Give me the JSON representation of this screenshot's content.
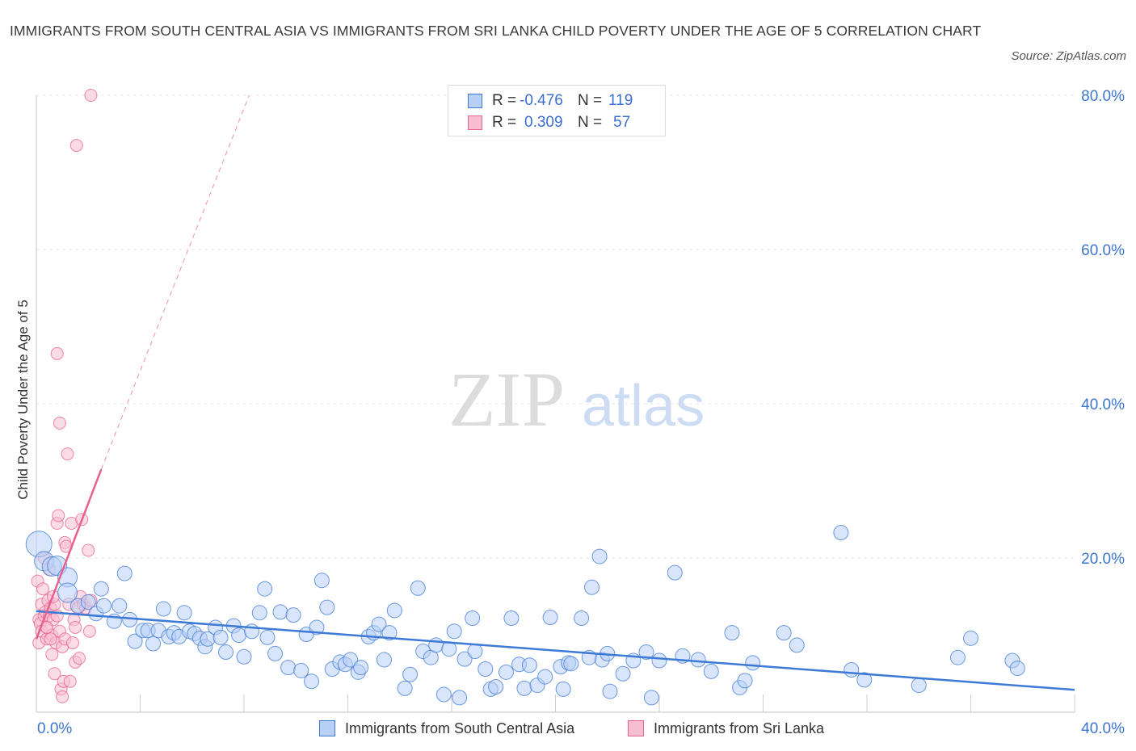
{
  "title": "IMMIGRANTS FROM SOUTH CENTRAL ASIA VS IMMIGRANTS FROM SRI LANKA CHILD POVERTY UNDER THE AGE OF 5 CORRELATION CHART",
  "source": "Source: ZipAtlas.com",
  "watermark": {
    "zip": "ZIP",
    "atlas": "atlas"
  },
  "colors": {
    "blue": "#3d7ad6",
    "blue_fill": "#b8d0f5",
    "pink": "#e8608f",
    "pink_fill": "#f7bdd0",
    "grid": "#e5e5e5",
    "tick_label": "#3d75cc"
  },
  "legend_top": [
    {
      "r_label": "R =",
      "r_value": "-0.476",
      "n_label": "N =",
      "n_value": "119"
    },
    {
      "r_label": "R =",
      "r_value": "0.309",
      "n_label": "N =",
      "n_value": "57"
    }
  ],
  "legend_bottom": [
    "Immigrants from South Central Asia",
    "Immigrants from Sri Lanka"
  ],
  "chart_data": {
    "type": "scatter",
    "ylabel": "Child Poverty Under the Age of 5",
    "x_ticks": [
      "0.0%",
      "40.0%"
    ],
    "y_ticks": [
      "20.0%",
      "40.0%",
      "60.0%",
      "80.0%"
    ],
    "xlim": [
      0,
      40
    ],
    "ylim": [
      0,
      80
    ],
    "grid": true,
    "series": [
      {
        "name": "Immigrants from South Central Asia",
        "color": "#3d7ad6",
        "trend": {
          "x": [
            0,
            40
          ],
          "y": [
            13.1,
            2.9
          ],
          "style": "solid"
        },
        "points": [
          [
            0.1,
            21.8
          ],
          [
            0.3,
            19.6
          ],
          [
            0.6,
            18.9
          ],
          [
            0.8,
            19.0
          ],
          [
            1.2,
            17.5
          ],
          [
            1.2,
            15.5
          ],
          [
            1.6,
            13.8
          ],
          [
            2.0,
            14.3
          ],
          [
            2.3,
            12.8
          ],
          [
            2.5,
            16.0
          ],
          [
            2.6,
            13.8
          ],
          [
            3.0,
            11.8
          ],
          [
            3.2,
            13.8
          ],
          [
            3.4,
            18.0
          ],
          [
            3.6,
            12.0
          ],
          [
            3.8,
            9.2
          ],
          [
            4.1,
            10.6
          ],
          [
            4.3,
            10.6
          ],
          [
            4.5,
            8.9
          ],
          [
            4.7,
            10.6
          ],
          [
            4.9,
            13.4
          ],
          [
            5.1,
            9.8
          ],
          [
            5.3,
            10.3
          ],
          [
            5.5,
            9.8
          ],
          [
            5.7,
            12.9
          ],
          [
            5.9,
            10.5
          ],
          [
            6.1,
            10.2
          ],
          [
            6.3,
            9.6
          ],
          [
            6.5,
            8.5
          ],
          [
            6.6,
            9.5
          ],
          [
            6.9,
            11.0
          ],
          [
            7.1,
            9.7
          ],
          [
            7.3,
            7.8
          ],
          [
            7.6,
            11.2
          ],
          [
            7.8,
            10.0
          ],
          [
            8.0,
            7.2
          ],
          [
            8.3,
            10.5
          ],
          [
            8.6,
            12.9
          ],
          [
            8.8,
            16.0
          ],
          [
            8.9,
            9.7
          ],
          [
            9.2,
            7.6
          ],
          [
            9.4,
            13.0
          ],
          [
            9.7,
            5.8
          ],
          [
            9.9,
            12.6
          ],
          [
            10.2,
            5.4
          ],
          [
            10.4,
            10.1
          ],
          [
            10.6,
            4.0
          ],
          [
            10.8,
            11.0
          ],
          [
            11.0,
            17.1
          ],
          [
            11.2,
            13.6
          ],
          [
            11.4,
            5.6
          ],
          [
            11.7,
            6.5
          ],
          [
            11.9,
            6.2
          ],
          [
            12.1,
            6.8
          ],
          [
            12.4,
            5.2
          ],
          [
            12.5,
            5.8
          ],
          [
            12.8,
            9.8
          ],
          [
            13.0,
            10.3
          ],
          [
            13.2,
            11.4
          ],
          [
            13.4,
            6.8
          ],
          [
            13.6,
            10.3
          ],
          [
            13.8,
            13.2
          ],
          [
            14.2,
            3.1
          ],
          [
            14.4,
            4.9
          ],
          [
            14.7,
            16.1
          ],
          [
            14.9,
            7.9
          ],
          [
            15.2,
            7.1
          ],
          [
            15.4,
            8.7
          ],
          [
            15.7,
            2.3
          ],
          [
            15.9,
            8.2
          ],
          [
            16.1,
            10.5
          ],
          [
            16.3,
            1.9
          ],
          [
            16.5,
            6.9
          ],
          [
            16.8,
            12.2
          ],
          [
            16.9,
            7.9
          ],
          [
            17.3,
            5.6
          ],
          [
            17.5,
            3.0
          ],
          [
            17.7,
            3.3
          ],
          [
            18.1,
            5.2
          ],
          [
            18.3,
            12.2
          ],
          [
            18.6,
            6.2
          ],
          [
            18.8,
            3.1
          ],
          [
            19.0,
            6.1
          ],
          [
            19.3,
            3.5
          ],
          [
            19.6,
            4.6
          ],
          [
            19.8,
            12.3
          ],
          [
            20.2,
            5.9
          ],
          [
            20.3,
            3.0
          ],
          [
            20.5,
            6.4
          ],
          [
            20.6,
            6.3
          ],
          [
            21.0,
            12.2
          ],
          [
            21.3,
            7.1
          ],
          [
            21.4,
            16.2
          ],
          [
            21.7,
            20.2
          ],
          [
            21.8,
            6.8
          ],
          [
            22.0,
            7.6
          ],
          [
            22.1,
            2.7
          ],
          [
            22.6,
            5.0
          ],
          [
            23.0,
            6.7
          ],
          [
            23.5,
            7.8
          ],
          [
            23.7,
            1.9
          ],
          [
            24.0,
            6.7
          ],
          [
            24.6,
            18.1
          ],
          [
            24.9,
            7.3
          ],
          [
            25.5,
            6.8
          ],
          [
            26.0,
            5.3
          ],
          [
            26.8,
            10.3
          ],
          [
            27.1,
            3.2
          ],
          [
            27.3,
            4.1
          ],
          [
            27.6,
            6.4
          ],
          [
            28.8,
            10.3
          ],
          [
            29.3,
            8.7
          ],
          [
            31.0,
            23.3
          ],
          [
            31.4,
            5.5
          ],
          [
            31.9,
            4.2
          ],
          [
            34.0,
            3.5
          ],
          [
            35.5,
            7.1
          ],
          [
            36.0,
            9.6
          ],
          [
            37.6,
            6.7
          ],
          [
            37.8,
            5.7
          ]
        ]
      },
      {
        "name": "Immigrants from Sri Lanka",
        "color": "#e8608f",
        "trend": {
          "x": [
            0,
            2.5
          ],
          "y": [
            9.5,
            31.5
          ],
          "style": "solid",
          "extension": {
            "x": [
              2.5,
              8.2
            ],
            "y": [
              31.5,
              80.0
            ],
            "style": "dashed"
          }
        },
        "points": [
          [
            0.05,
            17.0
          ],
          [
            0.1,
            12.0
          ],
          [
            0.1,
            9.0
          ],
          [
            0.15,
            11.5
          ],
          [
            0.2,
            14.0
          ],
          [
            0.2,
            10.5
          ],
          [
            0.25,
            16.0
          ],
          [
            0.3,
            12.5
          ],
          [
            0.3,
            20.0
          ],
          [
            0.35,
            13.0
          ],
          [
            0.4,
            11.0
          ],
          [
            0.4,
            9.5
          ],
          [
            0.45,
            14.5
          ],
          [
            0.5,
            12.5
          ],
          [
            0.5,
            18.5
          ],
          [
            0.55,
            13.5
          ],
          [
            0.6,
            7.5
          ],
          [
            0.6,
            10.0
          ],
          [
            0.65,
            12.0
          ],
          [
            0.7,
            5.0
          ],
          [
            0.7,
            14.0
          ],
          [
            0.75,
            9.0
          ],
          [
            0.8,
            12.5
          ],
          [
            0.8,
            24.5
          ],
          [
            0.8,
            46.5
          ],
          [
            0.85,
            25.5
          ],
          [
            0.9,
            10.5
          ],
          [
            0.9,
            37.5
          ],
          [
            0.95,
            3.0
          ],
          [
            1.0,
            8.5
          ],
          [
            1.0,
            2.0
          ],
          [
            1.05,
            4.0
          ],
          [
            1.1,
            22.0
          ],
          [
            1.1,
            9.5
          ],
          [
            1.15,
            21.5
          ],
          [
            1.2,
            33.5
          ],
          [
            1.25,
            14.0
          ],
          [
            1.3,
            4.0
          ],
          [
            1.35,
            24.5
          ],
          [
            1.4,
            9.0
          ],
          [
            1.45,
            12.0
          ],
          [
            1.5,
            6.5
          ],
          [
            1.5,
            11.0
          ],
          [
            1.55,
            73.5
          ],
          [
            1.6,
            13.5
          ],
          [
            1.65,
            7.0
          ],
          [
            1.7,
            15.0
          ],
          [
            1.75,
            25.0
          ],
          [
            1.8,
            14.0
          ],
          [
            1.9,
            13.5
          ],
          [
            2.0,
            21.0
          ],
          [
            2.05,
            10.5
          ],
          [
            2.1,
            14.5
          ],
          [
            2.1,
            80.0
          ],
          [
            0.55,
            9.5
          ],
          [
            0.65,
            15.0
          ],
          [
            0.4,
            11.0
          ]
        ]
      }
    ]
  }
}
